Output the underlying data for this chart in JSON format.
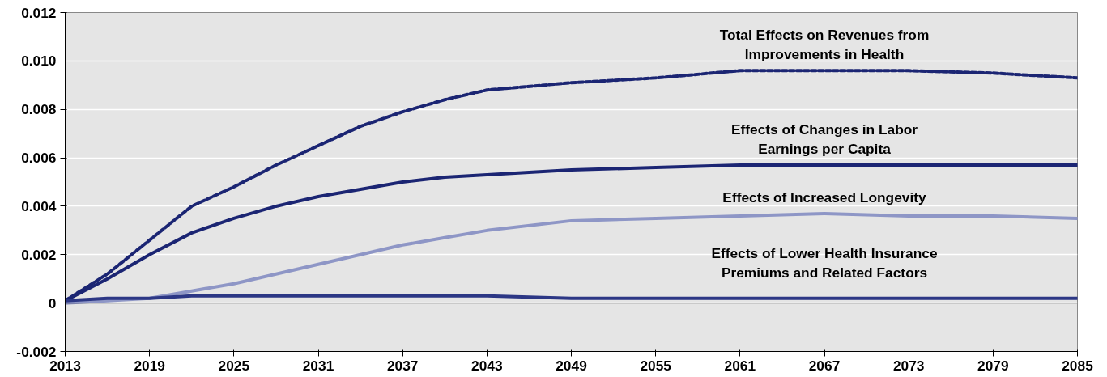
{
  "chart_data": {
    "type": "line",
    "x": [
      2013,
      2016,
      2019,
      2022,
      2025,
      2028,
      2031,
      2034,
      2037,
      2040,
      2043,
      2049,
      2055,
      2061,
      2067,
      2073,
      2079,
      2085
    ],
    "series": [
      {
        "name": "Total Effects on Revenues from\nImprovements in Health",
        "color": "#1b2573",
        "line_style": "dashed",
        "values": [
          0.0001,
          0.0012,
          0.0026,
          0.004,
          0.0048,
          0.0057,
          0.0065,
          0.0073,
          0.0079,
          0.0084,
          0.0088,
          0.0091,
          0.0093,
          0.0096,
          0.0096,
          0.0096,
          0.0095,
          0.0093
        ]
      },
      {
        "name": "Effects of Changes in Labor\nEarnings per Capita",
        "color": "#1b2573",
        "line_style": "solid",
        "values": [
          0.0001,
          0.001,
          0.002,
          0.0029,
          0.0035,
          0.004,
          0.0044,
          0.0047,
          0.005,
          0.0052,
          0.0053,
          0.0055,
          0.0056,
          0.0057,
          0.0057,
          0.0057,
          0.0057,
          0.0057
        ]
      },
      {
        "name": "Effects of Increased Longevity",
        "color": "#8e96c6",
        "line_style": "solid",
        "values": [
          0.0,
          0.0001,
          0.0002,
          0.0005,
          0.0008,
          0.0012,
          0.0016,
          0.002,
          0.0024,
          0.0027,
          0.003,
          0.0034,
          0.0035,
          0.0036,
          0.0037,
          0.0036,
          0.0036,
          0.0035
        ]
      },
      {
        "name": "Effects of Lower Health Insurance\nPremiums and Related Factors",
        "color": "#2c3785",
        "line_style": "solid",
        "values": [
          0.0001,
          0.0002,
          0.0002,
          0.0003,
          0.0003,
          0.0003,
          0.0003,
          0.0003,
          0.0003,
          0.0003,
          0.0003,
          0.0002,
          0.0002,
          0.0002,
          0.0002,
          0.0002,
          0.0002,
          0.0002
        ]
      }
    ],
    "ref_lines": [
      {
        "axis": "y",
        "value": 0,
        "color": "#000000"
      }
    ],
    "xlim": [
      2013,
      2085
    ],
    "xticks": [
      2013,
      2019,
      2025,
      2031,
      2037,
      2043,
      2049,
      2055,
      2061,
      2067,
      2073,
      2079,
      2085
    ],
    "ylim": [
      -0.002,
      0.012
    ],
    "yticks": [
      {
        "value": -0.002,
        "label": "-0.002"
      },
      {
        "value": 0,
        "label": "0"
      },
      {
        "value": 0.002,
        "label": "0.002"
      },
      {
        "value": 0.004,
        "label": "0.004"
      },
      {
        "value": 0.006,
        "label": "0.006"
      },
      {
        "value": 0.008,
        "label": "0.008"
      },
      {
        "value": 0.01,
        "label": "0.010"
      },
      {
        "value": 0.012,
        "label": "0.012"
      }
    ],
    "grid": "y",
    "legend": false
  }
}
